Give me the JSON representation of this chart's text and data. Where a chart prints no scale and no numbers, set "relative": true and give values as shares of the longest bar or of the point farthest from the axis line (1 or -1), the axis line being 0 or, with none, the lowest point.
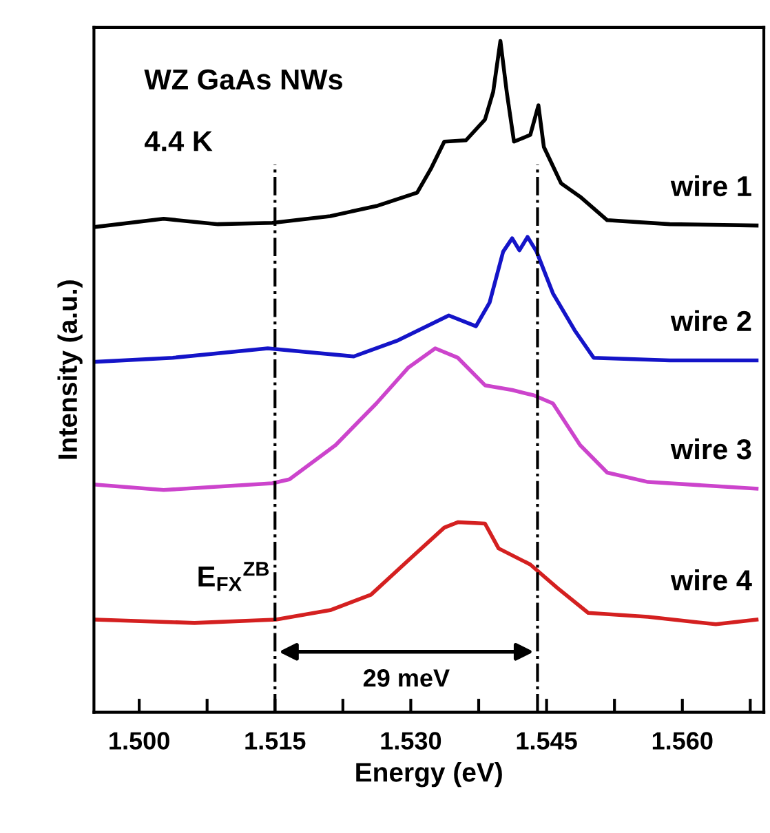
{
  "chart_data": {
    "type": "line",
    "relative": true,
    "xlabel": "Energy (eV)",
    "ylabel": "Intensity (a.u.)",
    "xlim": [
      1.495,
      1.569
    ],
    "xticks": [
      {
        "value": 1.5,
        "label": "1.500"
      },
      {
        "value": 1.5075,
        "label": null
      },
      {
        "value": 1.515,
        "label": "1.515"
      },
      {
        "value": 1.5225,
        "label": null
      },
      {
        "value": 1.53,
        "label": "1.530"
      },
      {
        "value": 1.5375,
        "label": null
      },
      {
        "value": 1.545,
        "label": "1.545"
      },
      {
        "value": 1.5525,
        "label": null
      },
      {
        "value": 1.56,
        "label": "1.560"
      },
      {
        "value": 1.5675,
        "label": null
      }
    ],
    "legend": false,
    "grid": false,
    "marker": "none",
    "line_style": "solid",
    "series": [
      {
        "name": "wire 1",
        "color": "#000000",
        "x": [
          1.4952,
          1.5027,
          1.5087,
          1.5147,
          1.5211,
          1.5262,
          1.5307,
          1.5322,
          1.5337,
          1.5361,
          1.5382,
          1.5391,
          1.5399,
          1.5406,
          1.5414,
          1.5432,
          1.5441,
          1.5447,
          1.5466,
          1.5487,
          1.5517,
          1.5586,
          1.5682
        ],
        "values": [
          0.723,
          0.735,
          0.727,
          0.729,
          0.739,
          0.754,
          0.774,
          0.809,
          0.85,
          0.852,
          0.883,
          0.924,
          1.0,
          0.924,
          0.85,
          0.86,
          0.904,
          0.842,
          0.788,
          0.768,
          0.733,
          0.727,
          0.725
        ]
      },
      {
        "name": "wire 2",
        "color": "#1414c8",
        "x": [
          1.4952,
          1.5037,
          1.5142,
          1.5237,
          1.5286,
          1.5342,
          1.5372,
          1.5387,
          1.5402,
          1.5412,
          1.542,
          1.5429,
          1.5439,
          1.5457,
          1.5481,
          1.5502,
          1.5586,
          1.5682
        ],
        "values": [
          0.522,
          0.528,
          0.542,
          0.53,
          0.554,
          0.591,
          0.575,
          0.61,
          0.686,
          0.706,
          0.688,
          0.708,
          0.686,
          0.624,
          0.569,
          0.528,
          0.524,
          0.524
        ]
      },
      {
        "name": "wire 3",
        "color": "#cc44cc",
        "x": [
          1.4952,
          1.5027,
          1.5147,
          1.5166,
          1.5217,
          1.5262,
          1.5297,
          1.5327,
          1.5352,
          1.5382,
          1.5412,
          1.5436,
          1.5457,
          1.5487,
          1.5517,
          1.5562,
          1.5682
        ],
        "values": [
          0.339,
          0.331,
          0.341,
          0.347,
          0.398,
          0.46,
          0.513,
          0.542,
          0.528,
          0.487,
          0.48,
          0.472,
          0.46,
          0.398,
          0.357,
          0.343,
          0.333
        ]
      },
      {
        "name": "wire 4",
        "color": "#d42020",
        "x": [
          1.4952,
          1.5061,
          1.5151,
          1.5211,
          1.5256,
          1.5297,
          1.5337,
          1.5352,
          1.5382,
          1.5397,
          1.5432,
          1.5462,
          1.5496,
          1.5562,
          1.5637,
          1.5682
        ],
        "values": [
          0.138,
          0.133,
          0.138,
          0.152,
          0.175,
          0.226,
          0.275,
          0.283,
          0.281,
          0.244,
          0.22,
          0.185,
          0.148,
          0.142,
          0.131,
          0.138
        ]
      }
    ],
    "ref_lines": [
      {
        "axis": "x",
        "value": 1.515,
        "label": "E$_{FX}$$^{ZB}$",
        "line_style": "dashdot",
        "color": "#000000"
      },
      {
        "axis": "x",
        "value": 1.544,
        "line_style": "dashdot",
        "color": "#000000"
      }
    ],
    "annotations": [
      "WZ GaAs NWs",
      "4.4 K",
      "29 meV"
    ]
  }
}
